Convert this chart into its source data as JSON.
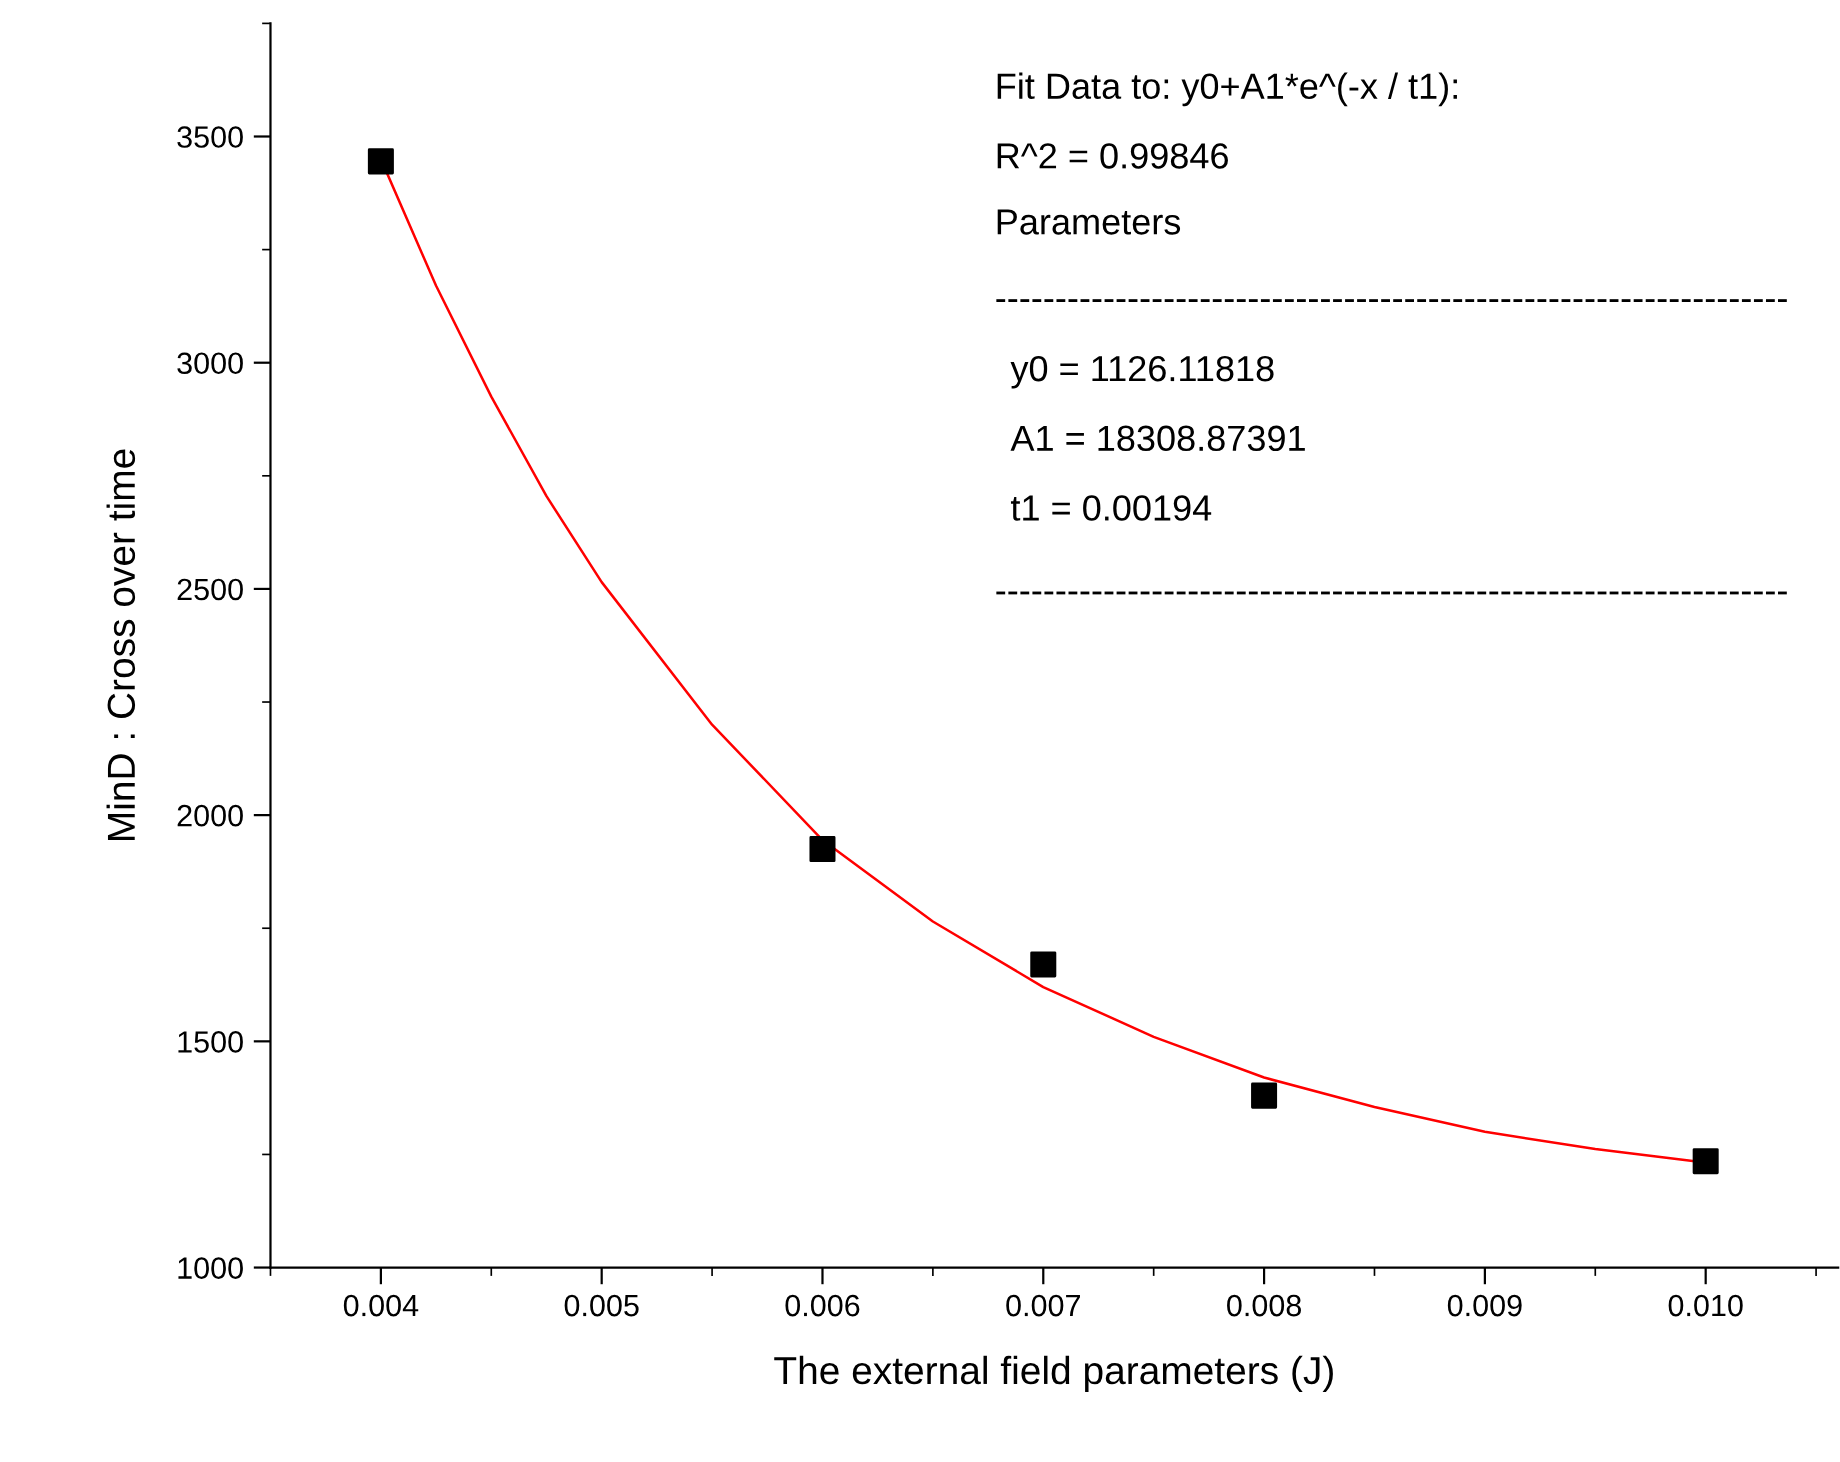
{
  "chart_data": {
    "type": "scatter",
    "xlabel": "The external field parameters (J)",
    "ylabel": "MinD : Cross over time",
    "series": [
      {
        "color": "#000000",
        "marker": "square",
        "x": [
          0.004,
          0.006,
          0.007,
          0.008,
          0.01
        ],
        "values": [
          3445,
          1925,
          1670,
          1380,
          1235
        ]
      },
      {
        "type": "line",
        "color": "#ff0000",
        "marker": "none",
        "x": [
          0.004,
          0.00425,
          0.0045,
          0.00475,
          0.005,
          0.0055,
          0.006,
          0.0065,
          0.007,
          0.0075,
          0.008,
          0.0085,
          0.009,
          0.0095,
          0.01
        ],
        "values": [
          3450,
          3170,
          2925,
          2705,
          2515,
          2200,
          1945,
          1765,
          1620,
          1510,
          1420,
          1355,
          1300,
          1262,
          1232
        ]
      }
    ],
    "xlim": [
      0.0035,
      0.0106
    ],
    "xticks": [
      {
        "value": 0.004,
        "label": "0.004"
      },
      {
        "value": 0.005,
        "label": "0.005"
      },
      {
        "value": 0.006,
        "label": "0.006"
      },
      {
        "value": 0.007,
        "label": "0.007"
      },
      {
        "value": 0.008,
        "label": "0.008"
      },
      {
        "value": 0.009,
        "label": "0.009"
      },
      {
        "value": 0.01,
        "label": "0.010"
      }
    ],
    "ylim": [
      1000,
      3750
    ],
    "yticks": [
      1000,
      1500,
      2000,
      2500,
      3000,
      3500
    ],
    "grid": false,
    "legend": false,
    "annotations": [
      "Fit Data to: y0+A1*e^(-x / t1):",
      "R^2 = 0.99846",
      "Parameters",
      "------------------------------------------------------------------",
      "y0 = 1126.11818",
      "A1 = 18308.87391",
      "t1 = 0.00194",
      "------------------------------------------------------------------"
    ]
  }
}
